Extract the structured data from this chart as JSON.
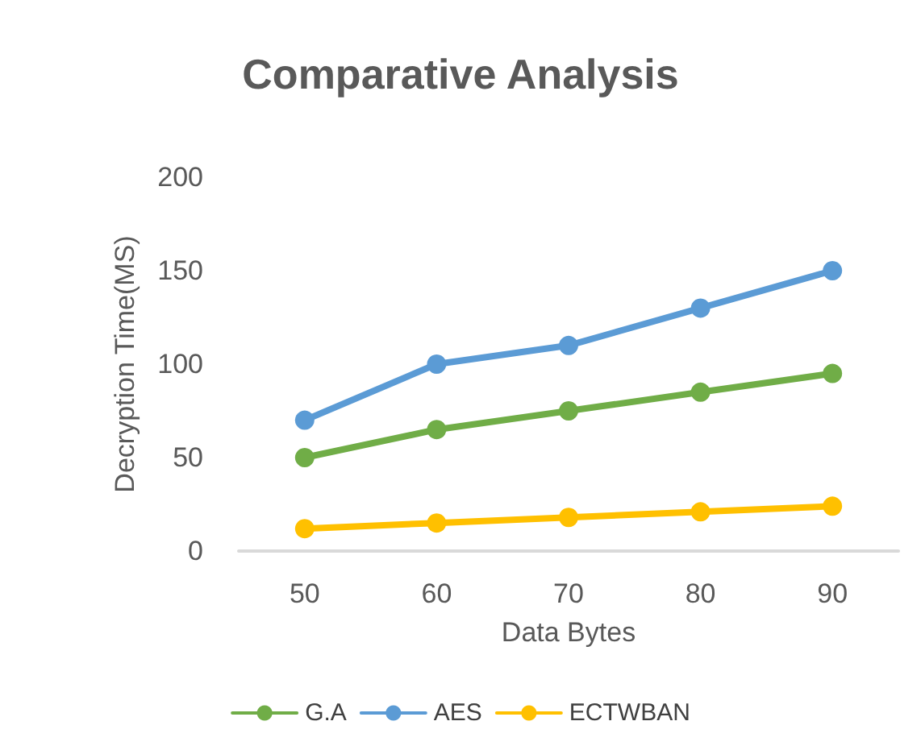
{
  "chart_data": {
    "type": "line",
    "title": "Comparative Analysis",
    "xlabel": "Data Bytes",
    "ylabel": "Decryption Time(MS)",
    "categories": [
      "50",
      "60",
      "70",
      "80",
      "90"
    ],
    "series": [
      {
        "name": "G.A",
        "color": "#70ad47",
        "values": [
          50,
          65,
          75,
          85,
          95
        ]
      },
      {
        "name": "AES",
        "color": "#5b9bd5",
        "values": [
          70,
          100,
          110,
          130,
          150
        ]
      },
      {
        "name": "ECTWBAN",
        "color": "#ffc000",
        "values": [
          12,
          15,
          18,
          21,
          24
        ]
      }
    ],
    "ylim": [
      0,
      200
    ],
    "yticks": [
      0,
      50,
      100,
      150,
      200
    ],
    "grid": false,
    "legend": "bottom",
    "marker": "circle",
    "line_style": "solid"
  }
}
